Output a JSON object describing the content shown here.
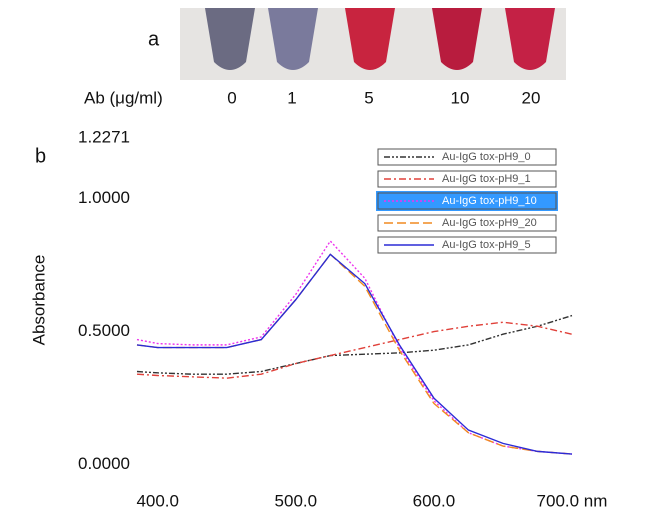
{
  "panel_a": {
    "label": "a",
    "row_label": "Ab (μg/ml)",
    "concentrations": [
      0,
      1,
      5,
      10,
      20
    ]
  },
  "chart_data": {
    "type": "line",
    "panel_label": "b",
    "y_label": "Absorbance",
    "x": [
      385,
      400,
      425,
      450,
      475,
      500,
      525,
      550,
      575,
      600,
      625,
      650,
      675,
      700
    ],
    "xlim": [
      385,
      700
    ],
    "xticks": [
      {
        "value": 400,
        "label": "400.0"
      },
      {
        "value": 500,
        "label": "500.0"
      },
      {
        "value": 600,
        "label": "600.0"
      },
      {
        "value": 700,
        "label": "700.0 nm"
      }
    ],
    "ylim": [
      -0.05,
      1.2271
    ],
    "yticks": [
      {
        "value": 0,
        "label": "0.0000"
      },
      {
        "value": 0.5,
        "label": "0.5000"
      },
      {
        "value": 1,
        "label": "1.0000"
      },
      1.2271
    ],
    "legend": "top-right",
    "series": [
      {
        "name": "Au-IgG tox-pH9_0",
        "color": "#333333",
        "dash": "6 2 2 2 2 2",
        "values": [
          0.35,
          0.345,
          0.34,
          0.34,
          0.35,
          0.38,
          0.41,
          0.415,
          0.42,
          0.43,
          0.45,
          0.49,
          0.52,
          0.56
        ]
      },
      {
        "name": "Au-IgG tox-pH9_1",
        "color": "#e0413a",
        "dash": "7 3 2 3",
        "values": [
          0.34,
          0.335,
          0.33,
          0.325,
          0.34,
          0.38,
          0.41,
          0.44,
          0.47,
          0.5,
          0.52,
          0.535,
          0.52,
          0.49
        ]
      },
      {
        "name": "Au-IgG tox-pH9_10",
        "color": "#ee33ee",
        "dash": "2 2",
        "values": [
          0.47,
          0.455,
          0.45,
          0.45,
          0.48,
          0.64,
          0.84,
          0.7,
          0.44,
          0.24,
          0.12,
          0.07,
          0.05,
          0.04
        ]
      },
      {
        "name": "Au-IgG tox-pH9_20",
        "color": "#f08a20",
        "dash": "9 4",
        "values": [
          0.45,
          0.44,
          0.44,
          0.44,
          0.47,
          0.62,
          0.79,
          0.67,
          0.43,
          0.23,
          0.12,
          0.07,
          0.05,
          0.04
        ]
      },
      {
        "name": "Au-IgG tox-pH9_5",
        "color": "#2b2bd6",
        "dash": "",
        "values": [
          0.45,
          0.44,
          0.44,
          0.44,
          0.47,
          0.62,
          0.79,
          0.68,
          0.45,
          0.25,
          0.13,
          0.08,
          0.05,
          0.04
        ]
      }
    ]
  }
}
